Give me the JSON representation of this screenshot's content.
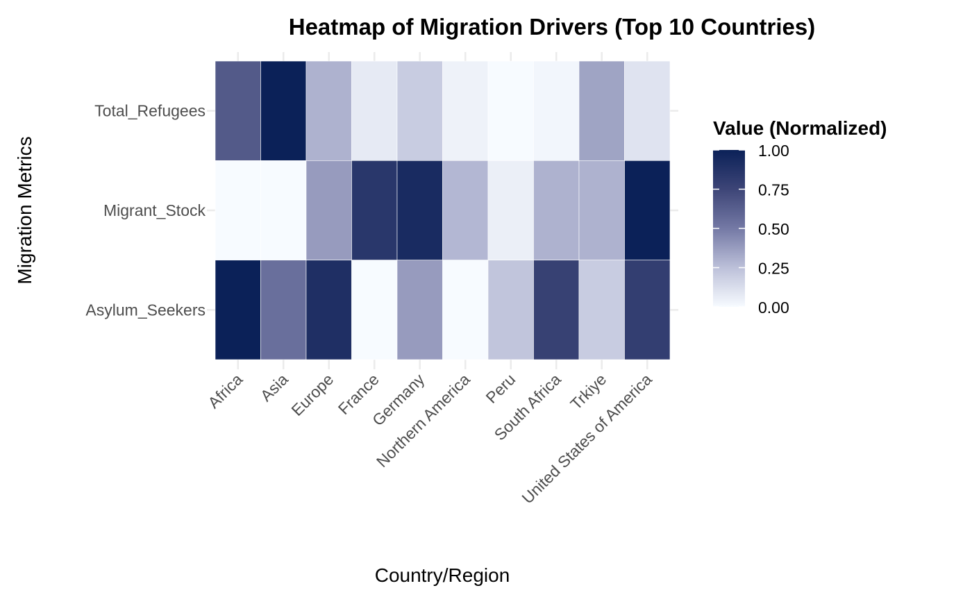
{
  "chart_data": {
    "type": "heatmap",
    "title": "Heatmap of Migration Drivers (Top 10 Countries)",
    "xlabel": "Country/Region",
    "ylabel": "Migration Metrics",
    "x_categories": [
      "Africa",
      "Asia",
      "Europe",
      "France",
      "Germany",
      "Northern America",
      "Peru",
      "South Africa",
      "Trkiye",
      "United States of America"
    ],
    "y_categories": [
      "Total_Refugees",
      "Migrant_Stock",
      "Asylum_Seekers"
    ],
    "values": [
      [
        0.65,
        1.0,
        0.3,
        0.07,
        0.2,
        0.04,
        0.0,
        0.02,
        0.35,
        0.1
      ],
      [
        0.0,
        0.0,
        0.38,
        0.85,
        0.93,
        0.28,
        0.05,
        0.3,
        0.3,
        1.0
      ],
      [
        1.0,
        0.55,
        0.9,
        0.0,
        0.38,
        0.0,
        0.23,
        0.78,
        0.2,
        0.8
      ]
    ],
    "legend": {
      "title": "Value (Normalized)",
      "ticks": [
        "0.00",
        "0.25",
        "0.50",
        "0.75",
        "1.00"
      ],
      "range": [
        0,
        1
      ],
      "placement": "right"
    },
    "colors": {
      "low": "#f7fbff",
      "high": "#0b2158"
    },
    "grid": true
  }
}
